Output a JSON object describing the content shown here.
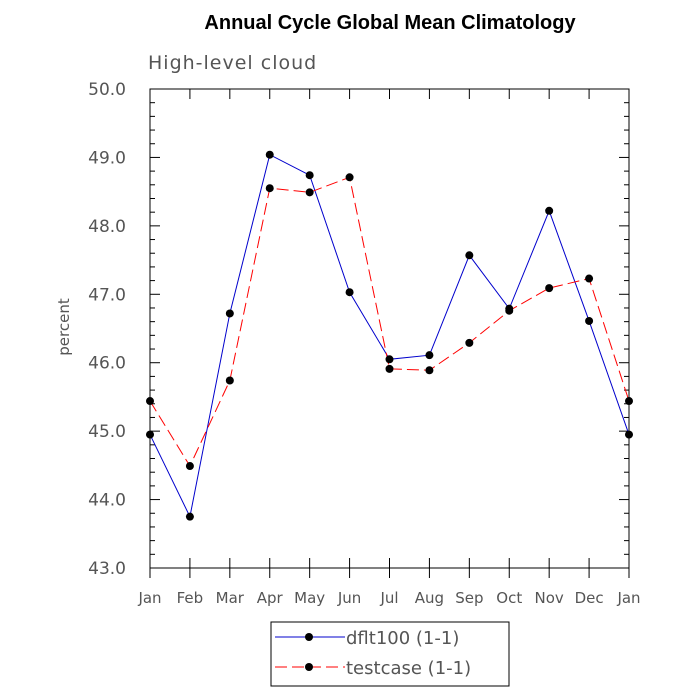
{
  "chart_data": {
    "type": "line",
    "title": "Annual Cycle Global Mean Climatology",
    "subtitle": "High-level cloud",
    "xlabel": "",
    "ylabel": "percent",
    "categories": [
      "Jan",
      "Feb",
      "Mar",
      "Apr",
      "May",
      "Jun",
      "Jul",
      "Aug",
      "Sep",
      "Oct",
      "Nov",
      "Dec",
      "Jan"
    ],
    "ylim": [
      43.0,
      50.0
    ],
    "yticks": [
      "43.0",
      "44.0",
      "45.0",
      "46.0",
      "47.0",
      "48.0",
      "49.0",
      "50.0"
    ],
    "series": [
      {
        "name": "dflt100 (1-1)",
        "color": "#0000cc",
        "dash": "solid",
        "values": [
          44.95,
          43.75,
          46.72,
          49.04,
          48.74,
          47.03,
          46.05,
          46.11,
          47.57,
          46.79,
          48.22,
          46.61,
          44.95
        ]
      },
      {
        "name": "testcase (1-1)",
        "color": "#ff0000",
        "dash": "dashed",
        "values": [
          45.44,
          44.49,
          45.74,
          48.55,
          48.49,
          48.71,
          45.91,
          45.89,
          46.29,
          46.76,
          47.09,
          47.23,
          45.44
        ]
      }
    ],
    "legend_position": "bottom-center"
  }
}
